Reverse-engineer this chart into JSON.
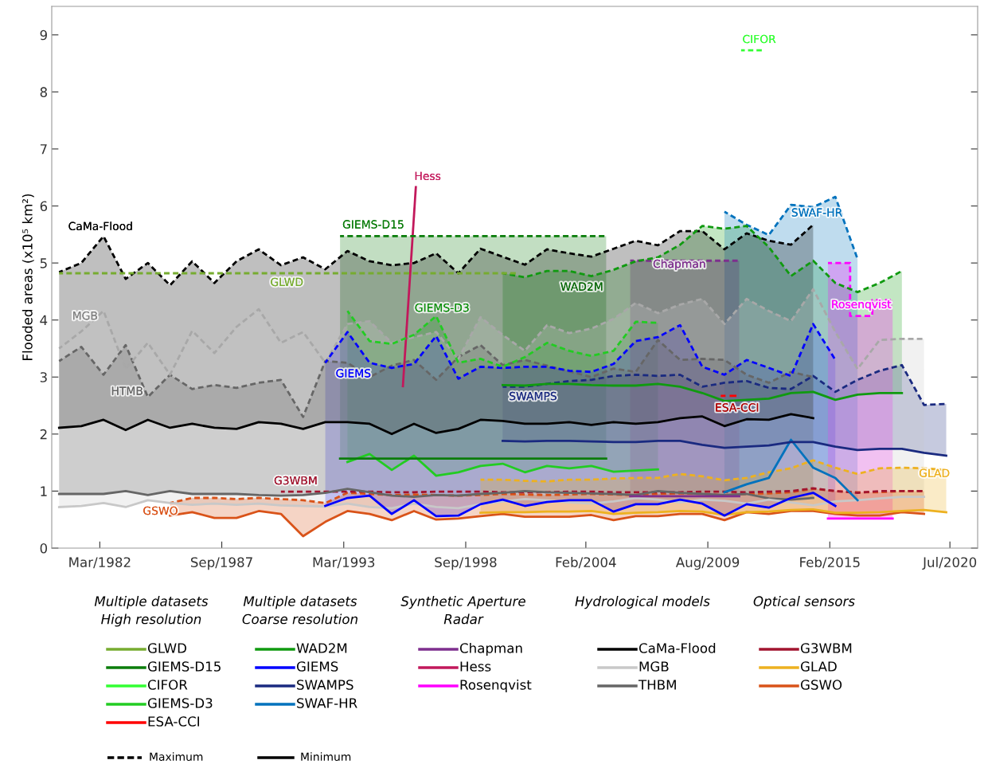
{
  "chart_data": {
    "type": "line",
    "ylabel": "Flooded areas (x10⁵ km²)",
    "xlim": [
      "1980-01",
      "2021-10"
    ],
    "ylim": [
      0,
      9.5
    ],
    "xticks": [
      {
        "value": "1982-03",
        "label": "Mar/1982"
      },
      {
        "value": "1987-09",
        "label": "Sep/1987"
      },
      {
        "value": "1993-03",
        "label": "Mar/1993"
      },
      {
        "value": "1998-09",
        "label": "Sep/1998"
      },
      {
        "value": "2004-02",
        "label": "Feb/2004"
      },
      {
        "value": "2009-08",
        "label": "Aug/2009"
      },
      {
        "value": "2015-02",
        "label": "Feb/2015"
      },
      {
        "value": "2020-07",
        "label": "Jul/2020"
      }
    ],
    "yticks": [
      0,
      1,
      2,
      3,
      4,
      5,
      6,
      7,
      8,
      9
    ],
    "grid": false,
    "legend": "bottom",
    "x": [
      "1980-05",
      "1981-05",
      "1982-05",
      "1983-05",
      "1984-05",
      "1985-05",
      "1986-05",
      "1987-05",
      "1988-05",
      "1989-05",
      "1990-05",
      "1991-05",
      "1992-05",
      "1993-05",
      "1994-05",
      "1995-05",
      "1996-05",
      "1997-05",
      "1998-05",
      "1999-05",
      "2000-05",
      "2001-05",
      "2002-05",
      "2003-05",
      "2004-05",
      "2005-05",
      "2006-05",
      "2007-05",
      "2008-05",
      "2009-05",
      "2010-05",
      "2011-05",
      "2012-05",
      "2013-05",
      "2014-05",
      "2015-05",
      "2016-05",
      "2017-05",
      "2018-05",
      "2019-05",
      "2020-05"
    ],
    "series": [
      {
        "name": "GLWD",
        "color": "#77ac30",
        "x": [
          "1980-05",
          "2001-01"
        ],
        "values": [
          4.82,
          4.82
        ],
        "line_style": "dashed"
      },
      {
        "name": "GIEMS-D15",
        "color": "#0b7d0b",
        "x": [
          "1993-01",
          "2005-01"
        ],
        "values": [
          1.57,
          1.57
        ],
        "lower": [
          1.57,
          1.57
        ],
        "upper": [
          5.47,
          5.47
        ]
      },
      {
        "color": "#0b7d0b",
        "x": [
          "1993-01",
          "2005-01"
        ],
        "values": [
          5.47,
          5.47
        ],
        "line_style": "dashed"
      },
      {
        "name": "CIFOR",
        "color": "#33ff33",
        "x": [
          "2011-02",
          "2012-02"
        ],
        "values": [
          8.73,
          8.73
        ],
        "line_style": "dashed"
      },
      {
        "name": "GIEMS-D3",
        "color": "#22cc22",
        "values": [
          null,
          null,
          null,
          null,
          null,
          null,
          null,
          null,
          null,
          null,
          null,
          null,
          null,
          1.51,
          1.65,
          1.37,
          1.62,
          1.27,
          1.33,
          1.44,
          1.48,
          1.33,
          1.44,
          1.4,
          1.44,
          1.34,
          1.36,
          1.38,
          null,
          null,
          null,
          null,
          null,
          null,
          null,
          null,
          null,
          null,
          null,
          null,
          null
        ],
        "lower": [
          null,
          null,
          null,
          null,
          null,
          null,
          null,
          null,
          null,
          null,
          null,
          null,
          null,
          1.51,
          1.65,
          1.37,
          1.62,
          1.27,
          1.33,
          1.44,
          1.48,
          1.33,
          1.44,
          1.4,
          1.44,
          1.34,
          1.36,
          1.38,
          null,
          null,
          null,
          null,
          null,
          null,
          null,
          null,
          null,
          null,
          null,
          null,
          null
        ],
        "upper": [
          null,
          null,
          null,
          null,
          null,
          null,
          null,
          null,
          null,
          null,
          null,
          null,
          null,
          4.16,
          3.63,
          3.58,
          3.74,
          4.07,
          3.25,
          3.32,
          3.18,
          3.35,
          3.6,
          3.46,
          3.37,
          3.46,
          3.97,
          3.95,
          null,
          null,
          null,
          null,
          null,
          null,
          null,
          null,
          null,
          null,
          null,
          null,
          null
        ]
      },
      {
        "color": "#22cc22",
        "line_style": "dashed",
        "values": [
          null,
          null,
          null,
          null,
          null,
          null,
          null,
          null,
          null,
          null,
          null,
          null,
          null,
          4.16,
          3.63,
          3.58,
          3.74,
          4.07,
          3.25,
          3.32,
          3.18,
          3.35,
          3.6,
          3.46,
          3.37,
          3.46,
          3.97,
          3.95,
          null,
          null,
          null,
          null,
          null,
          null,
          null,
          null,
          null,
          null,
          null,
          null,
          null
        ]
      },
      {
        "name": "ESA-CCI",
        "color": "#ff0000",
        "x": [
          "2010-03",
          "2011-01"
        ],
        "values": [
          2.67,
          2.67
        ],
        "line_style": "dashed"
      },
      {
        "name": "WAD2M",
        "color": "#109a10",
        "values": [
          null,
          null,
          null,
          null,
          null,
          null,
          null,
          null,
          null,
          null,
          null,
          null,
          null,
          null,
          null,
          null,
          null,
          null,
          null,
          null,
          2.86,
          2.85,
          2.88,
          2.88,
          2.86,
          2.85,
          2.85,
          2.88,
          2.83,
          2.72,
          2.58,
          2.6,
          2.62,
          2.72,
          2.74,
          2.6,
          2.69,
          2.72,
          2.72,
          null,
          null
        ],
        "lower": [
          null,
          null,
          null,
          null,
          null,
          null,
          null,
          null,
          null,
          null,
          null,
          null,
          null,
          null,
          null,
          null,
          null,
          null,
          null,
          null,
          2.86,
          2.85,
          2.88,
          2.88,
          2.86,
          2.85,
          2.85,
          2.88,
          2.83,
          2.72,
          2.58,
          2.6,
          2.62,
          2.72,
          2.74,
          2.6,
          2.69,
          2.72,
          2.72,
          null,
          null
        ],
        "upper": [
          null,
          null,
          null,
          null,
          null,
          null,
          null,
          null,
          null,
          null,
          null,
          null,
          null,
          null,
          null,
          null,
          null,
          null,
          null,
          null,
          4.82,
          4.75,
          4.86,
          4.86,
          4.77,
          4.88,
          5.03,
          5.1,
          5.32,
          5.65,
          5.6,
          5.65,
          5.28,
          4.77,
          5.04,
          4.65,
          4.49,
          4.65,
          4.86,
          null,
          null
        ]
      },
      {
        "color": "#109a10",
        "line_style": "dashed",
        "values": [
          null,
          null,
          null,
          null,
          null,
          null,
          null,
          null,
          null,
          null,
          null,
          null,
          null,
          null,
          null,
          null,
          null,
          null,
          null,
          null,
          4.82,
          4.75,
          4.86,
          4.86,
          4.77,
          4.88,
          5.03,
          5.1,
          5.32,
          5.65,
          5.6,
          5.65,
          5.28,
          4.77,
          5.04,
          4.65,
          4.49,
          4.65,
          4.86,
          null,
          null
        ]
      },
      {
        "name": "GIEMS",
        "color": "#0000ff",
        "values": [
          null,
          null,
          null,
          null,
          null,
          null,
          null,
          null,
          null,
          null,
          null,
          null,
          0.74,
          0.88,
          0.92,
          0.6,
          0.84,
          0.56,
          0.57,
          0.77,
          0.85,
          0.74,
          0.81,
          0.84,
          0.84,
          0.64,
          0.77,
          0.77,
          0.85,
          0.78,
          0.57,
          0.77,
          0.71,
          0.88,
          0.97,
          0.74,
          null,
          null,
          null,
          null,
          null
        ],
        "lower": [
          null,
          null,
          null,
          null,
          null,
          null,
          null,
          null,
          null,
          null,
          null,
          null,
          0.74,
          0.88,
          0.92,
          0.6,
          0.84,
          0.56,
          0.57,
          0.77,
          0.85,
          0.74,
          0.81,
          0.84,
          0.84,
          0.64,
          0.77,
          0.77,
          0.85,
          0.78,
          0.57,
          0.77,
          0.71,
          0.88,
          0.97,
          0.74,
          null,
          null,
          null,
          null,
          null
        ],
        "upper": [
          null,
          null,
          null,
          null,
          null,
          null,
          null,
          null,
          null,
          null,
          null,
          null,
          3.25,
          3.79,
          3.25,
          3.16,
          3.23,
          3.72,
          2.97,
          3.18,
          3.16,
          3.18,
          3.18,
          3.11,
          3.09,
          3.23,
          3.63,
          3.7,
          3.91,
          3.18,
          3.04,
          3.3,
          3.16,
          3.02,
          3.93,
          3.3,
          null,
          null,
          null,
          null,
          null
        ]
      },
      {
        "color": "#0000ff",
        "line_style": "dashed",
        "values": [
          null,
          null,
          null,
          null,
          null,
          null,
          null,
          null,
          null,
          null,
          null,
          null,
          3.25,
          3.79,
          3.25,
          3.16,
          3.23,
          3.72,
          2.97,
          3.18,
          3.16,
          3.18,
          3.18,
          3.11,
          3.09,
          3.23,
          3.63,
          3.7,
          3.91,
          3.18,
          3.04,
          3.3,
          3.16,
          3.02,
          3.93,
          3.3,
          null,
          null,
          null,
          null,
          null
        ]
      },
      {
        "name": "SWAMPS",
        "color": "#1a2a80",
        "values": [
          null,
          null,
          null,
          null,
          null,
          null,
          null,
          null,
          null,
          null,
          null,
          null,
          null,
          null,
          null,
          null,
          null,
          null,
          null,
          null,
          1.88,
          1.87,
          1.88,
          1.88,
          1.87,
          1.86,
          1.86,
          1.88,
          1.88,
          1.81,
          1.76,
          1.78,
          1.8,
          1.86,
          1.86,
          1.78,
          1.72,
          1.74,
          1.74,
          1.67,
          1.62
        ],
        "lower": [
          null,
          null,
          null,
          null,
          null,
          null,
          null,
          null,
          null,
          null,
          null,
          null,
          null,
          null,
          null,
          null,
          null,
          null,
          null,
          null,
          1.88,
          1.87,
          1.88,
          1.88,
          1.87,
          1.86,
          1.86,
          1.88,
          1.88,
          1.81,
          1.76,
          1.78,
          1.8,
          1.86,
          1.86,
          1.78,
          1.72,
          1.74,
          1.74,
          1.67,
          1.62
        ],
        "upper": [
          null,
          null,
          null,
          null,
          null,
          null,
          null,
          null,
          null,
          null,
          null,
          null,
          null,
          null,
          null,
          null,
          null,
          null,
          null,
          null,
          2.83,
          2.83,
          2.88,
          2.93,
          2.95,
          3.02,
          3.04,
          3.02,
          3.04,
          2.83,
          2.9,
          2.93,
          2.81,
          2.79,
          3.02,
          2.74,
          2.95,
          3.11,
          3.21,
          2.51,
          2.53
        ]
      },
      {
        "color": "#1a2a80",
        "line_style": "dashed",
        "values": [
          null,
          null,
          null,
          null,
          null,
          null,
          null,
          null,
          null,
          null,
          null,
          null,
          null,
          null,
          null,
          null,
          null,
          null,
          null,
          null,
          2.83,
          2.83,
          2.88,
          2.93,
          2.95,
          3.02,
          3.04,
          3.02,
          3.04,
          2.83,
          2.9,
          2.93,
          2.81,
          2.79,
          3.02,
          2.74,
          2.95,
          3.11,
          3.21,
          2.51,
          2.53
        ]
      },
      {
        "name": "SWAF-HR",
        "color": "#0072bd",
        "values": [
          null,
          null,
          null,
          null,
          null,
          null,
          null,
          null,
          null,
          null,
          null,
          null,
          null,
          null,
          null,
          null,
          null,
          null,
          null,
          null,
          null,
          null,
          null,
          null,
          null,
          null,
          null,
          null,
          null,
          null,
          0.98,
          1.12,
          1.23,
          1.9,
          1.41,
          1.23,
          0.84,
          null,
          null,
          null,
          null
        ],
        "lower": [
          null,
          null,
          null,
          null,
          null,
          null,
          null,
          null,
          null,
          null,
          null,
          null,
          null,
          null,
          null,
          null,
          null,
          null,
          null,
          null,
          null,
          null,
          null,
          null,
          null,
          null,
          null,
          null,
          null,
          null,
          0.98,
          1.12,
          1.23,
          1.9,
          1.41,
          1.23,
          0.84,
          null,
          null,
          null,
          null
        ],
        "upper": [
          null,
          null,
          null,
          null,
          null,
          null,
          null,
          null,
          null,
          null,
          null,
          null,
          null,
          null,
          null,
          null,
          null,
          null,
          null,
          null,
          null,
          null,
          null,
          null,
          null,
          null,
          null,
          null,
          null,
          null,
          5.9,
          5.67,
          5.49,
          6.02,
          5.98,
          6.16,
          5.07,
          null,
          null,
          null,
          null
        ]
      },
      {
        "color": "#0072bd",
        "line_style": "dashed",
        "values": [
          null,
          null,
          null,
          null,
          null,
          null,
          null,
          null,
          null,
          null,
          null,
          null,
          null,
          null,
          null,
          null,
          null,
          null,
          null,
          null,
          null,
          null,
          null,
          null,
          null,
          null,
          null,
          null,
          null,
          null,
          5.9,
          5.67,
          5.49,
          6.02,
          5.98,
          6.16,
          5.07,
          null,
          null,
          null,
          null
        ]
      },
      {
        "name": "Chapman",
        "color": "#7e2f8e",
        "x": [
          "2006-02",
          "2011-01"
        ],
        "values": [
          0.91,
          0.91
        ],
        "lower": [
          0.91,
          0.91
        ],
        "upper": [
          5.04,
          5.04
        ]
      },
      {
        "color": "#7e2f8e",
        "x": [
          "2006-02",
          "2011-01"
        ],
        "values": [
          5.04,
          5.04
        ],
        "line_style": "dashed"
      },
      {
        "name": "Hess",
        "color": "#c2185b",
        "x": [
          "1995-11",
          "1996-06"
        ],
        "values": [
          2.84,
          6.33
        ]
      },
      {
        "name": "Rosenqvist",
        "color": "#ff00ff",
        "type": "step",
        "x": [
          "2015-01",
          "2016-01",
          "2017-01",
          "2017-12"
        ],
        "values": [
          0.52,
          0.52,
          0.52,
          0.52
        ],
        "lower": [
          0.52,
          0.52,
          0.52,
          0.52
        ],
        "upper": [
          5.0,
          4.07,
          4.35,
          4.35
        ]
      },
      {
        "color": "#ff00ff",
        "type": "step",
        "x": [
          "2015-01",
          "2016-01",
          "2017-01",
          "2017-12"
        ],
        "values": [
          5.0,
          4.07,
          4.35,
          4.35
        ],
        "line_style": "dashed"
      },
      {
        "name": "CaMa-Flood",
        "color": "#000000",
        "values": [
          2.11,
          2.14,
          2.25,
          2.07,
          2.25,
          2.11,
          2.18,
          2.11,
          2.09,
          2.21,
          2.18,
          2.09,
          2.21,
          2.21,
          2.18,
          2.0,
          2.18,
          2.02,
          2.09,
          2.25,
          2.23,
          2.18,
          2.18,
          2.21,
          2.16,
          2.21,
          2.18,
          2.21,
          2.28,
          2.31,
          2.14,
          2.26,
          2.25,
          2.35,
          2.28,
          null,
          null,
          null,
          null,
          null,
          null
        ],
        "lower": [
          2.11,
          2.14,
          2.25,
          2.07,
          2.25,
          2.11,
          2.18,
          2.11,
          2.09,
          2.21,
          2.18,
          2.09,
          2.21,
          2.21,
          2.18,
          2.0,
          2.18,
          2.02,
          2.09,
          2.25,
          2.23,
          2.18,
          2.18,
          2.21,
          2.16,
          2.21,
          2.18,
          2.21,
          2.28,
          2.31,
          2.14,
          2.26,
          2.25,
          2.35,
          2.28,
          null,
          null,
          null,
          null,
          null,
          null
        ],
        "upper": [
          4.84,
          5.0,
          5.47,
          4.72,
          5.0,
          4.61,
          5.03,
          4.65,
          5.03,
          5.24,
          4.96,
          5.1,
          4.89,
          5.21,
          5.03,
          4.96,
          5.0,
          5.17,
          4.82,
          5.25,
          5.11,
          4.97,
          5.24,
          5.17,
          5.11,
          5.25,
          5.39,
          5.31,
          5.56,
          5.56,
          5.24,
          5.52,
          5.39,
          5.32,
          5.67,
          null,
          null,
          null,
          null,
          null,
          null
        ]
      },
      {
        "color": "#000000",
        "line_style": "dashed",
        "values": [
          4.84,
          5.0,
          5.47,
          4.72,
          5.0,
          4.61,
          5.03,
          4.65,
          5.03,
          5.24,
          4.96,
          5.1,
          4.89,
          5.21,
          5.03,
          4.96,
          5.0,
          5.17,
          4.82,
          5.25,
          5.11,
          4.97,
          5.24,
          5.17,
          5.11,
          5.25,
          5.39,
          5.31,
          5.56,
          5.56,
          5.24,
          5.52,
          5.39,
          5.32,
          5.67,
          null,
          null,
          null,
          null,
          null,
          null
        ]
      },
      {
        "name": "MGB",
        "color": "#c8c8c8",
        "values": [
          0.72,
          0.74,
          0.79,
          0.72,
          0.84,
          0.79,
          0.76,
          0.78,
          0.76,
          0.78,
          0.75,
          0.74,
          0.73,
          0.78,
          0.72,
          0.7,
          0.78,
          0.72,
          0.7,
          0.77,
          0.82,
          0.86,
          0.84,
          0.8,
          0.78,
          0.82,
          0.88,
          0.85,
          0.8,
          0.85,
          0.83,
          0.78,
          0.85,
          0.8,
          0.75,
          0.82,
          0.84,
          0.87,
          0.9,
          0.9,
          null
        ],
        "lower": [
          0.72,
          0.74,
          0.79,
          0.72,
          0.84,
          0.79,
          0.76,
          0.78,
          0.76,
          0.78,
          0.75,
          0.74,
          0.73,
          0.78,
          0.72,
          0.7,
          0.78,
          0.72,
          0.7,
          0.77,
          0.82,
          0.86,
          0.84,
          0.8,
          0.78,
          0.82,
          0.88,
          0.85,
          0.8,
          0.85,
          0.83,
          0.78,
          0.85,
          0.8,
          0.75,
          0.82,
          0.84,
          0.87,
          0.9,
          0.9,
          null
        ],
        "upper": [
          3.5,
          3.8,
          4.16,
          3.14,
          3.6,
          3.04,
          3.81,
          3.42,
          3.88,
          4.19,
          3.6,
          3.79,
          3.25,
          3.93,
          3.98,
          3.6,
          3.7,
          3.79,
          3.32,
          4.05,
          3.74,
          3.46,
          3.91,
          3.77,
          3.85,
          4.02,
          4.3,
          4.12,
          4.27,
          4.37,
          3.93,
          4.37,
          4.16,
          3.98,
          4.54,
          3.79,
          3.14,
          3.65,
          3.67,
          3.67,
          null
        ]
      },
      {
        "color": "#a8a8a8",
        "line_style": "dashed",
        "values": [
          3.5,
          3.8,
          4.16,
          3.14,
          3.6,
          3.04,
          3.81,
          3.42,
          3.88,
          4.19,
          3.6,
          3.79,
          3.25,
          3.93,
          3.98,
          3.6,
          3.7,
          3.79,
          3.32,
          4.05,
          3.74,
          3.46,
          3.91,
          3.77,
          3.85,
          4.02,
          4.3,
          4.12,
          4.27,
          4.37,
          3.93,
          4.37,
          4.16,
          3.98,
          4.54,
          3.79,
          3.14,
          3.65,
          3.67,
          3.67,
          null
        ]
      },
      {
        "name": "THBM",
        "color": "#666666",
        "values": [
          0.95,
          0.95,
          0.95,
          1.0,
          0.93,
          1.0,
          0.95,
          0.95,
          0.95,
          0.93,
          0.92,
          0.93,
          0.97,
          1.04,
          0.98,
          0.92,
          0.9,
          0.93,
          0.92,
          0.95,
          0.97,
          1.0,
          0.98,
          0.97,
          0.96,
          0.95,
          0.93,
          1.0,
          0.97,
          0.95,
          0.93,
          0.95,
          0.87,
          0.85,
          0.88,
          null,
          null,
          null,
          null,
          null,
          null
        ],
        "lower": [
          0.95,
          0.95,
          0.95,
          1.0,
          0.93,
          1.0,
          0.95,
          0.95,
          0.95,
          0.93,
          0.92,
          0.93,
          0.97,
          1.04,
          0.98,
          0.92,
          0.9,
          0.93,
          0.92,
          0.95,
          0.97,
          1.0,
          0.98,
          0.97,
          0.96,
          0.95,
          0.93,
          1.0,
          0.97,
          0.95,
          0.93,
          0.95,
          0.87,
          0.85,
          0.88,
          null,
          null,
          null,
          null,
          null,
          null
        ],
        "upper": [
          3.28,
          3.53,
          3.04,
          3.56,
          2.65,
          3.04,
          2.79,
          2.86,
          2.81,
          2.9,
          2.95,
          2.3,
          3.28,
          3.25,
          3.0,
          3.2,
          3.3,
          2.95,
          3.35,
          3.56,
          3.21,
          3.3,
          3.2,
          3.1,
          3.0,
          3.15,
          3.09,
          3.65,
          3.3,
          3.32,
          3.3,
          3.04,
          2.9,
          3.09,
          3.0,
          null,
          null,
          null,
          null,
          null,
          null
        ]
      },
      {
        "color": "#666666",
        "line_style": "dashed",
        "values": [
          3.28,
          3.53,
          3.04,
          3.56,
          2.65,
          3.04,
          2.79,
          2.86,
          2.81,
          2.9,
          2.95,
          2.3,
          3.28,
          3.25,
          3.0,
          3.2,
          3.3,
          2.95,
          3.35,
          3.56,
          3.21,
          3.3,
          3.2,
          3.1,
          3.0,
          3.15,
          3.09,
          3.65,
          3.3,
          3.32,
          3.3,
          3.04,
          2.9,
          3.09,
          3.0,
          null,
          null,
          null,
          null,
          null,
          null
        ]
      },
      {
        "name": "G3WBM",
        "color": "#a2142f",
        "line_style": "dashed",
        "values": [
          null,
          null,
          null,
          null,
          null,
          null,
          null,
          null,
          null,
          null,
          0.99,
          0.99,
          0.99,
          0.99,
          0.99,
          0.98,
          0.98,
          0.99,
          0.99,
          0.99,
          0.98,
          0.98,
          0.98,
          0.99,
          0.99,
          0.98,
          0.98,
          0.98,
          0.98,
          0.99,
          0.99,
          0.98,
          0.99,
          1.0,
          1.05,
          1.0,
          0.97,
          1.0,
          1.0,
          1.0,
          null
        ]
      },
      {
        "name": "GLAD",
        "color": "#edb120",
        "values": [
          null,
          null,
          null,
          null,
          null,
          null,
          null,
          null,
          null,
          null,
          null,
          null,
          null,
          null,
          null,
          null,
          null,
          null,
          null,
          0.62,
          0.63,
          0.63,
          0.64,
          0.64,
          0.65,
          0.6,
          0.62,
          0.63,
          0.65,
          0.64,
          0.58,
          0.63,
          0.64,
          0.67,
          0.68,
          0.62,
          0.62,
          0.63,
          0.65,
          0.67,
          0.63
        ],
        "lower": [
          null,
          null,
          null,
          null,
          null,
          null,
          null,
          null,
          null,
          null,
          null,
          null,
          null,
          null,
          null,
          null,
          null,
          null,
          null,
          0.62,
          0.63,
          0.63,
          0.64,
          0.64,
          0.65,
          0.6,
          0.62,
          0.63,
          0.65,
          0.64,
          0.58,
          0.63,
          0.64,
          0.67,
          0.68,
          0.62,
          0.62,
          0.63,
          0.65,
          0.67,
          0.63
        ],
        "upper": [
          null,
          null,
          null,
          null,
          null,
          null,
          null,
          null,
          null,
          null,
          null,
          null,
          null,
          null,
          null,
          null,
          null,
          null,
          null,
          1.2,
          1.2,
          1.18,
          1.17,
          1.2,
          1.2,
          1.22,
          1.23,
          1.23,
          1.3,
          1.26,
          1.19,
          1.23,
          1.33,
          1.4,
          1.54,
          1.41,
          1.3,
          1.4,
          1.41,
          1.4,
          1.37
        ]
      },
      {
        "color": "#edb120",
        "line_style": "dashed",
        "values": [
          null,
          null,
          null,
          null,
          null,
          null,
          null,
          null,
          null,
          null,
          null,
          null,
          null,
          null,
          null,
          null,
          null,
          null,
          null,
          1.2,
          1.2,
          1.18,
          1.17,
          1.2,
          1.2,
          1.22,
          1.23,
          1.23,
          1.3,
          1.26,
          1.19,
          1.23,
          1.33,
          1.4,
          1.54,
          1.41,
          1.3,
          1.4,
          1.41,
          1.4,
          1.37
        ]
      },
      {
        "name": "GSWO",
        "color": "#d95319",
        "values": [
          null,
          null,
          null,
          null,
          null,
          0.57,
          0.63,
          0.53,
          0.53,
          0.65,
          0.6,
          0.21,
          0.46,
          0.65,
          0.6,
          0.49,
          0.65,
          0.5,
          0.52,
          0.56,
          0.6,
          0.55,
          0.55,
          0.55,
          0.58,
          0.49,
          0.56,
          0.56,
          0.6,
          0.6,
          0.49,
          0.63,
          0.6,
          0.65,
          0.65,
          0.6,
          0.57,
          0.57,
          0.63,
          0.6,
          null
        ],
        "lower": [
          null,
          null,
          null,
          null,
          null,
          0.57,
          0.63,
          0.53,
          0.53,
          0.65,
          0.6,
          0.21,
          0.46,
          0.65,
          0.6,
          0.49,
          0.65,
          0.5,
          0.52,
          0.56,
          0.6,
          0.55,
          0.55,
          0.55,
          0.58,
          0.49,
          0.56,
          0.56,
          0.6,
          0.6,
          0.49,
          0.63,
          0.6,
          0.65,
          0.65,
          0.6,
          0.57,
          0.57,
          0.63,
          0.6,
          null
        ],
        "upper": [
          null,
          null,
          null,
          null,
          null,
          0.79,
          0.88,
          0.88,
          0.86,
          0.88,
          0.86,
          0.84,
          0.79,
          0.97,
          0.95,
          0.93,
          0.94,
          0.93,
          0.92,
          0.93,
          0.95,
          0.94,
          0.93,
          0.94,
          0.95,
          0.94,
          0.93,
          0.95,
          0.96,
          0.95,
          0.93,
          0.95,
          0.96,
          0.98,
          1.04,
          1.0,
          0.98,
          0.98,
          1.0,
          1.0,
          null
        ]
      },
      {
        "color": "#d95319",
        "line_style": "dashed",
        "values": [
          null,
          null,
          null,
          null,
          null,
          0.79,
          0.88,
          0.88,
          0.86,
          0.88,
          0.86,
          0.84,
          0.79,
          0.97,
          0.95,
          0.93,
          0.94,
          0.93,
          0.92,
          0.93,
          0.95,
          0.94,
          0.93,
          0.94,
          0.95,
          0.94,
          0.93,
          0.95,
          0.96,
          0.95,
          0.93,
          0.95,
          0.96,
          0.98,
          1.04,
          1.0,
          0.98,
          0.98,
          1.0,
          1.0,
          null
        ]
      }
    ],
    "annotations": [
      "CaMa-Flood",
      "GLWD",
      "MGB",
      "HTMB",
      "G3WBM",
      "GSWO",
      {
        "text": "GIEMS-D15",
        "x": "1994-07",
        "y": 5.47
      },
      "Hess",
      "GIEMS-D3",
      "GIEMS",
      "WAD2M",
      "SWAMPS",
      "Chapman",
      "CIFOR",
      "ESA-CCI",
      "SWAF-HR",
      {
        "text": "Rosenqvist",
        "x": "2016-07",
        "y": 4.07
      },
      "GLAD",
      "Multiple datasets\nHigh resolution",
      "Multiple datasets\nCoarse resolution",
      "Synthetic Aperture\nRadar",
      "Hydrological models",
      "Optical sensors",
      "Maximum",
      "Minimum"
    ]
  }
}
